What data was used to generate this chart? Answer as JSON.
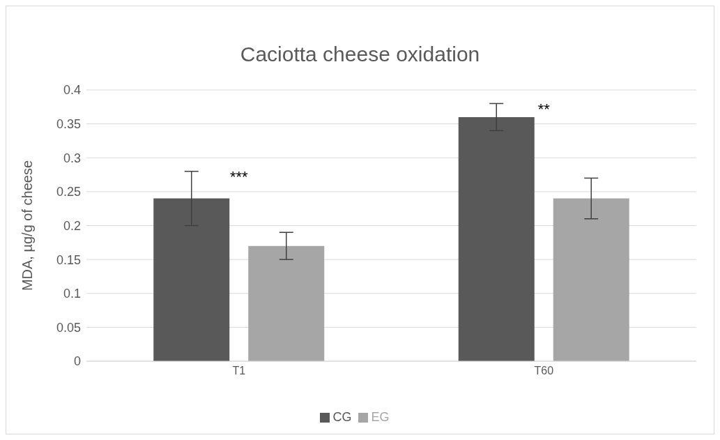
{
  "chart_data": {
    "type": "bar",
    "title": "Caciotta cheese oxidation",
    "ylabel": "MDA, µg/g of cheese",
    "categories": [
      "T1",
      "T60"
    ],
    "series": [
      {
        "name": "CG",
        "color": "#595959",
        "values": [
          0.24,
          0.36
        ],
        "errors": [
          0.04,
          0.02
        ]
      },
      {
        "name": "EG",
        "color": "#a6a6a6",
        "values": [
          0.17,
          0.24
        ],
        "errors": [
          0.02,
          0.03
        ]
      }
    ],
    "ylim": [
      0,
      0.4
    ],
    "yticks": [
      0,
      0.05,
      0.1,
      0.15,
      0.2,
      0.25,
      0.3,
      0.35,
      0.4
    ],
    "grid": "y",
    "legend": "bottom",
    "annotations": [
      "***",
      "**"
    ]
  }
}
